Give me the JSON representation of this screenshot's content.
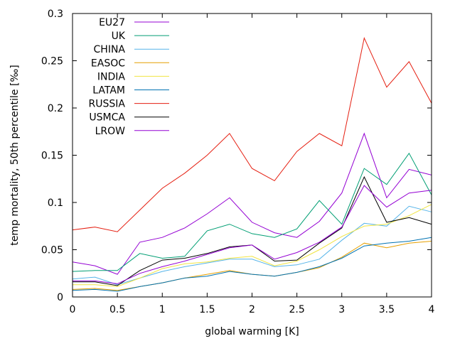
{
  "chart_data": {
    "type": "line",
    "title": "",
    "xlabel": "global warming [K]",
    "ylabel": "temp mortality, 50th percentile [‰]",
    "xlim": [
      0,
      4
    ],
    "ylim": [
      0,
      0.3
    ],
    "xticks": [
      "0",
      "0.5",
      "1",
      "1.5",
      "2",
      "2.5",
      "3",
      "3.5",
      "4"
    ],
    "yticks": [
      "0",
      "0.05",
      "0.1",
      "0.15",
      "0.2",
      "0.25",
      "0.3"
    ],
    "grid": false,
    "legend_position": "top-left",
    "x": [
      0,
      0.25,
      0.5,
      0.75,
      1,
      1.25,
      1.5,
      1.75,
      2,
      2.25,
      2.5,
      2.75,
      3,
      3.25,
      3.5,
      3.75,
      4
    ],
    "series": [
      {
        "name": "EU27",
        "color": "#9400d3",
        "values": [
          0.037,
          0.033,
          0.024,
          0.058,
          0.063,
          0.073,
          0.088,
          0.105,
          0.079,
          0.068,
          0.063,
          0.08,
          0.11,
          0.173,
          0.105,
          0.135,
          0.129
        ]
      },
      {
        "name": "UK",
        "color": "#009e73",
        "values": [
          0.027,
          0.028,
          0.028,
          0.046,
          0.041,
          0.043,
          0.07,
          0.077,
          0.067,
          0.063,
          0.072,
          0.102,
          0.077,
          0.136,
          0.119,
          0.152,
          0.108
        ]
      },
      {
        "name": "CHINA",
        "color": "#56b4e9",
        "values": [
          0.019,
          0.021,
          0.013,
          0.02,
          0.027,
          0.032,
          0.036,
          0.04,
          0.04,
          0.032,
          0.034,
          0.04,
          0.06,
          0.078,
          0.075,
          0.096,
          0.09
        ]
      },
      {
        "name": "EASOC",
        "color": "#e69f00",
        "values": [
          0.008,
          0.009,
          0.007,
          0.011,
          0.015,
          0.02,
          0.024,
          0.028,
          0.024,
          0.022,
          0.026,
          0.031,
          0.042,
          0.057,
          0.052,
          0.057,
          0.059
        ]
      },
      {
        "name": "INDIA",
        "color": "#f0e442",
        "values": [
          0.013,
          0.013,
          0.011,
          0.02,
          0.03,
          0.035,
          0.037,
          0.041,
          0.043,
          0.033,
          0.038,
          0.05,
          0.064,
          0.075,
          0.077,
          0.086,
          0.098
        ]
      },
      {
        "name": "LATAM",
        "color": "#0072b2",
        "values": [
          0.007,
          0.008,
          0.006,
          0.011,
          0.015,
          0.02,
          0.022,
          0.027,
          0.024,
          0.022,
          0.026,
          0.032,
          0.041,
          0.054,
          0.057,
          0.059,
          0.063
        ]
      },
      {
        "name": "RUSSIA",
        "color": "#e51e10",
        "values": [
          0.071,
          0.074,
          0.069,
          0.092,
          0.115,
          0.131,
          0.15,
          0.173,
          0.136,
          0.123,
          0.154,
          0.173,
          0.16,
          0.274,
          0.222,
          0.249,
          0.205
        ]
      },
      {
        "name": "USMCA",
        "color": "#000000",
        "values": [
          0.016,
          0.016,
          0.012,
          0.028,
          0.039,
          0.041,
          0.046,
          0.053,
          0.055,
          0.038,
          0.039,
          0.057,
          0.073,
          0.127,
          0.079,
          0.084,
          0.077
        ]
      },
      {
        "name": "LROW",
        "color": "#9400d3",
        "values": [
          0.017,
          0.017,
          0.014,
          0.025,
          0.032,
          0.038,
          0.045,
          0.052,
          0.055,
          0.04,
          0.047,
          0.058,
          0.074,
          0.118,
          0.095,
          0.11,
          0.113
        ]
      }
    ]
  }
}
